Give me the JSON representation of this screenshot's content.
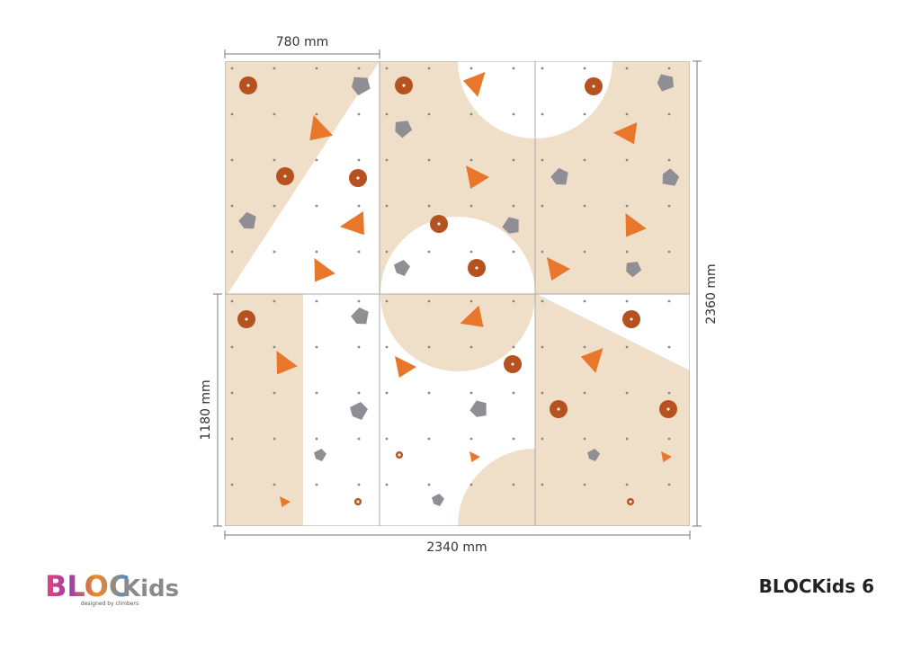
{
  "dimensions": {
    "top_width": "780 mm",
    "right_height": "2360 mm",
    "left_height": "1180 mm",
    "bottom_width": "2340 mm"
  },
  "logo": {
    "brand": "BLOC",
    "sub": "Kids",
    "tagline": "designed by climbers"
  },
  "title": "BLOCKids 6"
}
